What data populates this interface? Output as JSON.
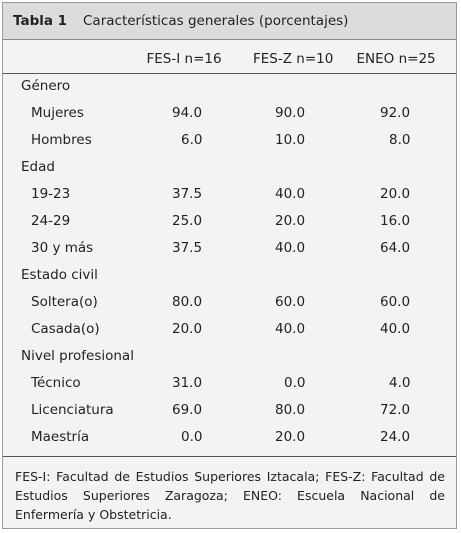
{
  "table": {
    "label": "Tabla 1",
    "title": "Características generales (porcentajes)",
    "columns": [
      "FES-I n=16",
      "FES-Z n=10",
      "ENEO n=25"
    ],
    "groups": [
      {
        "label": "Género",
        "rows": [
          {
            "label": "Mujeres",
            "values": [
              "94.0",
              "90.0",
              "92.0"
            ]
          },
          {
            "label": "Hombres",
            "values": [
              "6.0",
              "10.0",
              "8.0"
            ]
          }
        ]
      },
      {
        "label": "Edad",
        "rows": [
          {
            "label": "19-23",
            "values": [
              "37.5",
              "40.0",
              "20.0"
            ]
          },
          {
            "label": "24-29",
            "values": [
              "25.0",
              "20.0",
              "16.0"
            ]
          },
          {
            "label": "30 y más",
            "values": [
              "37.5",
              "40.0",
              "64.0"
            ]
          }
        ]
      },
      {
        "label": "Estado civil",
        "rows": [
          {
            "label": "Soltera(o)",
            "values": [
              "80.0",
              "60.0",
              "60.0"
            ]
          },
          {
            "label": "Casada(o)",
            "values": [
              "20.0",
              "40.0",
              "40.0"
            ]
          }
        ]
      },
      {
        "label": "Nivel profesional",
        "rows": [
          {
            "label": "Técnico",
            "values": [
              "31.0",
              "0.0",
              "4.0"
            ]
          },
          {
            "label": "Licenciatura",
            "values": [
              "69.0",
              "80.0",
              "72.0"
            ]
          },
          {
            "label": "Maestría",
            "values": [
              "0.0",
              "20.0",
              "24.0"
            ]
          }
        ]
      }
    ],
    "footnote": "FES-I: Facultad de Estudios Superiores Iztacala; FES-Z: Facultad de Estudios Superiores Zaragoza; ENEO: Escuela Nacional de Enfermería y Obstetricia."
  }
}
